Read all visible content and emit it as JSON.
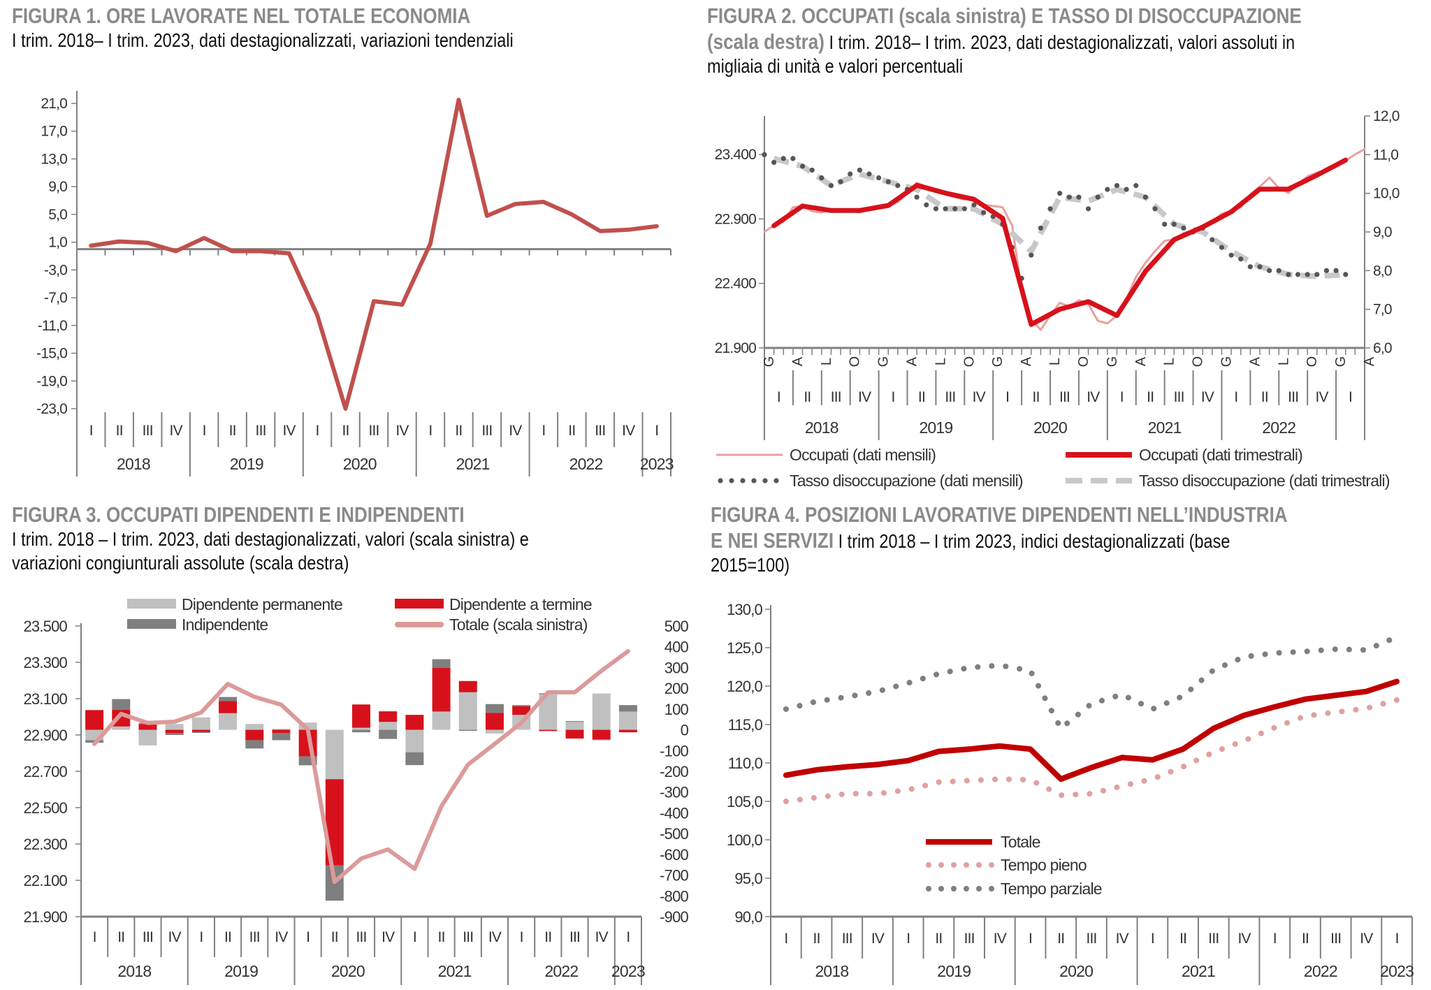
{
  "figures": {
    "f1": {
      "title": "FIGURA 1. ORE LAVORATE NEL TOTALE ECONOMIA",
      "subtitle": "I trim. 2018– I trim. 2023, dati destagionalizzati, variazioni tendenziali"
    },
    "f2": {
      "title": "FIGURA 2. OCCUPATI (scala sinistra) E TASSO DI DISOCCUPAZIONE",
      "title2": "(scala destra)",
      "subtitle": " I trim. 2018– I trim. 2023, dati destagionalizzati, valori assoluti in",
      "subtitle2": "migliaia di unità e valori percentuali"
    },
    "f3": {
      "title": "FIGURA 3. OCCUPATI DIPENDENTI E INDIPENDENTI",
      "subtitle": "I trim. 2018 – I trim. 2023, dati destagionalizzati, valori (scala sinistra) e",
      "subtitle2": "variazioni congiunturali assolute (scala destra)"
    },
    "f4": {
      "title": "FIGURA 4. POSIZIONI LAVORATIVE DIPENDENTI NELL’INDUSTRIA",
      "title2": "E NEI SERVIZI",
      "subtitle": " I trim 2018 – I trim 2023, indici destagionalizzati (base",
      "subtitle2": "2015=100)"
    }
  },
  "chart_data": [
    {
      "type": "line",
      "quarters": [
        "I",
        "II",
        "III",
        "IV",
        "I",
        "II",
        "III",
        "IV",
        "I",
        "II",
        "III",
        "IV",
        "I",
        "II",
        "III",
        "IV",
        "I",
        "II",
        "III",
        "IV",
        "I"
      ],
      "years": [
        "2018",
        "2019",
        "2020",
        "2021",
        "2022",
        "2023"
      ],
      "ylim": [
        -23,
        21
      ],
      "yticks": [
        "21,0",
        "17,0",
        "13,0",
        "9,0",
        "5,0",
        "1,0",
        "-3,0",
        "-7,0",
        "-11,0",
        "-15,0",
        "-19,0",
        "-23,0"
      ],
      "ytick_values": [
        21,
        17,
        13,
        9,
        5,
        1,
        -3,
        -7,
        -11,
        -15,
        -19,
        -23
      ],
      "series": [
        {
          "values": [
            0.5,
            1.1,
            0.9,
            -0.3,
            1.6,
            -0.3,
            -0.3,
            -0.6,
            -9.5,
            -23.0,
            -7.5,
            -8.0,
            0.8,
            21.5,
            4.8,
            6.5,
            6.8,
            5.0,
            2.6,
            2.8,
            3.3
          ],
          "color": "#c0504d"
        }
      ]
    },
    {
      "type": "line",
      "months": [
        "G",
        "A",
        "L",
        "O",
        "G",
        "A",
        "L",
        "O",
        "G",
        "A",
        "L",
        "O",
        "G",
        "A",
        "L",
        "O",
        "G",
        "A",
        "L",
        "O",
        "G",
        "A"
      ],
      "quarters": [
        "I",
        "II",
        "III",
        "IV",
        "I",
        "II",
        "III",
        "IV",
        "I",
        "II",
        "III",
        "IV",
        "I",
        "II",
        "III",
        "IV",
        "I",
        "II",
        "III",
        "IV",
        "I"
      ],
      "years": [
        "2018",
        "2019",
        "2020",
        "2021",
        "2022"
      ],
      "ylim_left": [
        21900,
        23700
      ],
      "ylim_right": [
        6.0,
        12.0
      ],
      "yticks_left": [
        "21.900",
        "22.400",
        "22.900",
        "23.400"
      ],
      "ytick_values_left": [
        21900,
        22400,
        22900,
        23400
      ],
      "yticks_right": [
        "6,0",
        "7,0",
        "8,0",
        "9,0",
        "10,0",
        "11,0",
        "12,0"
      ],
      "ytick_values_right": [
        6,
        7,
        8,
        9,
        10,
        11,
        12
      ],
      "series": [
        {
          "name": "Occupati (dati mensili)",
          "axis": "left",
          "freq": "monthly",
          "color": "#e8a0a0",
          "values": [
            22800,
            22850,
            22880,
            22990,
            23000,
            22960,
            22950,
            22970,
            22970,
            22960,
            22950,
            22980,
            22980,
            23000,
            23030,
            23100,
            23180,
            23150,
            23110,
            23090,
            23070,
            23050,
            23060,
            23010,
            23000,
            22990,
            22850,
            22350,
            22120,
            22040,
            22150,
            22250,
            22220,
            22270,
            22240,
            22110,
            22090,
            22150,
            22280,
            22450,
            22560,
            22650,
            22730,
            22740,
            22790,
            22810,
            22850,
            22880,
            22940,
            22960,
            22990,
            23090,
            23150,
            23220,
            23140,
            23100,
            23170,
            23230,
            23260,
            23280,
            23310,
            23350,
            23400,
            23440
          ]
        },
        {
          "name": "Occupati (dati trimestrali)",
          "axis": "left",
          "freq": "quarterly",
          "color": "#d7111b",
          "values": [
            22847,
            23000,
            22965,
            22965,
            23004,
            23160,
            23100,
            23052,
            22905,
            22082,
            22200,
            22259,
            22151,
            22494,
            22739,
            22837,
            22955,
            23131,
            23131,
            23239,
            23356
          ]
        },
        {
          "name": "Tasso disoccupazione (dati mensili)",
          "axis": "right",
          "freq": "monthly",
          "color": "#555555",
          "values": [
            11.0,
            10.8,
            10.9,
            10.9,
            10.7,
            10.6,
            10.4,
            10.2,
            10.3,
            10.5,
            10.6,
            10.5,
            10.4,
            10.3,
            10.2,
            10.1,
            9.9,
            9.7,
            9.6,
            9.6,
            9.6,
            9.6,
            9.7,
            9.5,
            9.4,
            9.2,
            8.6,
            7.8,
            8.4,
            9.1,
            9.6,
            10.0,
            9.9,
            9.9,
            9.6,
            9.9,
            10.1,
            10.2,
            10.1,
            10.2,
            9.9,
            9.6,
            9.2,
            9.2,
            9.1,
            9.0,
            9.1,
            8.8,
            8.6,
            8.4,
            8.3,
            8.1,
            8.1,
            8.0,
            8.0,
            7.9,
            7.9,
            7.9,
            7.9,
            8.0,
            8.0,
            7.9
          ]
        },
        {
          "name": "Tasso disoccupazione (dati trimestrali)",
          "axis": "right",
          "freq": "quarterly",
          "color": "#c8c8c8",
          "values": [
            10.9,
            10.7,
            10.2,
            10.5,
            10.3,
            10.1,
            9.6,
            9.6,
            9.2,
            8.5,
            9.9,
            9.8,
            10.1,
            9.9,
            9.2,
            9.0,
            8.5,
            8.1,
            7.9,
            7.85,
            7.9
          ]
        }
      ]
    },
    {
      "type": "bar",
      "quarters": [
        "I",
        "II",
        "III",
        "IV",
        "I",
        "II",
        "III",
        "IV",
        "I",
        "II",
        "III",
        "IV",
        "I",
        "II",
        "III",
        "IV",
        "I",
        "II",
        "III",
        "IV",
        "I"
      ],
      "years": [
        "2018",
        "2019",
        "2020",
        "2021",
        "2022",
        "2023"
      ],
      "ylim_left": [
        21900,
        23500
      ],
      "ylim_right": [
        -900,
        500
      ],
      "yticks_left": [
        "23.500",
        "23.300",
        "23.100",
        "22.900",
        "22.700",
        "22.500",
        "22.300",
        "22.100",
        "21.900"
      ],
      "ytick_values_left": [
        23500,
        23300,
        23100,
        22900,
        22700,
        22500,
        22300,
        22100,
        21900
      ],
      "yticks_right": [
        "500",
        "400",
        "300",
        "200",
        "100",
        "0",
        "-100",
        "-200",
        "-300",
        "-400",
        "-500",
        "-600",
        "-700",
        "-800",
        "-900"
      ],
      "ytick_values_right": [
        500,
        400,
        300,
        200,
        100,
        0,
        -100,
        -200,
        -300,
        -400,
        -500,
        -600,
        -700,
        -800,
        -900
      ],
      "series": [
        {
          "name": "Dipendente permanente",
          "kind": "bar",
          "color": "#c0c0c0",
          "values": [
            -50,
            16,
            -75,
            28,
            60,
            80,
            28,
            5,
            35,
            -238,
            10,
            38,
            -108,
            88,
            181,
            -18,
            72,
            172,
            38,
            175,
            88
          ]
        },
        {
          "name": "Dipendente a termine",
          "kind": "bar",
          "color": "#d7111b",
          "values": [
            95,
            80,
            28,
            -15,
            -10,
            58,
            -50,
            -15,
            -128,
            -415,
            112,
            51,
            72,
            210,
            54,
            82,
            41,
            -6,
            -42,
            -46,
            -12
          ]
        },
        {
          "name": "Indipendente",
          "kind": "bar",
          "color": "#7f7f7f",
          "values": [
            -12,
            52,
            5,
            -10,
            -5,
            20,
            -40,
            -35,
            -43,
            -170,
            -12,
            -44,
            -62,
            42,
            -5,
            42,
            6,
            4,
            4,
            -4,
            31
          ]
        },
        {
          "name": "Totale (scala sinistra)",
          "kind": "line",
          "axis": "left",
          "color": "#dc9a9a",
          "values": [
            22851,
            23016,
            22966,
            22973,
            23024,
            23181,
            23110,
            23067,
            22930,
            22091,
            22220,
            22270,
            22163,
            22507,
            22737,
            22851,
            22966,
            23135,
            23135,
            23253,
            23361
          ]
        }
      ]
    },
    {
      "type": "line",
      "quarters": [
        "I",
        "II",
        "III",
        "IV",
        "I",
        "II",
        "III",
        "IV",
        "I",
        "II",
        "III",
        "IV",
        "I",
        "II",
        "III",
        "IV",
        "I",
        "II",
        "III",
        "IV",
        "I"
      ],
      "years": [
        "2018",
        "2019",
        "2020",
        "2021",
        "2022",
        "2023"
      ],
      "ylim": [
        90,
        130
      ],
      "yticks": [
        "130,0",
        "125,0",
        "120,0",
        "115,0",
        "110,0",
        "105,0",
        "100,0",
        "95,0",
        "90,0"
      ],
      "ytick_values": [
        130,
        125,
        120,
        115,
        110,
        105,
        100,
        95,
        90
      ],
      "series": [
        {
          "name": "Totale",
          "style": "solid",
          "color": "#c00000",
          "values": [
            108.4,
            109.1,
            109.5,
            109.8,
            110.3,
            111.5,
            111.8,
            112.2,
            111.8,
            107.9,
            109.4,
            110.7,
            110.4,
            111.8,
            114.5,
            116.2,
            117.3,
            118.3,
            118.8,
            119.3,
            120.6
          ]
        },
        {
          "name": "Tempo pieno",
          "style": "dotted",
          "color": "#e0a0a0",
          "values": [
            105.0,
            105.5,
            106.0,
            106.0,
            106.5,
            107.5,
            107.7,
            107.9,
            107.8,
            105.8,
            106.0,
            107.0,
            107.9,
            109.5,
            111.4,
            112.9,
            114.6,
            116.1,
            116.6,
            117.1,
            118.2
          ]
        },
        {
          "name": "Tempo parziale",
          "style": "dotted",
          "color": "#7f7f7f",
          "values": [
            117.0,
            118.0,
            118.6,
            119.3,
            120.4,
            121.6,
            122.4,
            122.7,
            122.0,
            114.5,
            117.7,
            118.9,
            117.0,
            118.7,
            122.1,
            123.8,
            124.3,
            124.5,
            124.8,
            124.7,
            126.4
          ]
        }
      ]
    }
  ]
}
